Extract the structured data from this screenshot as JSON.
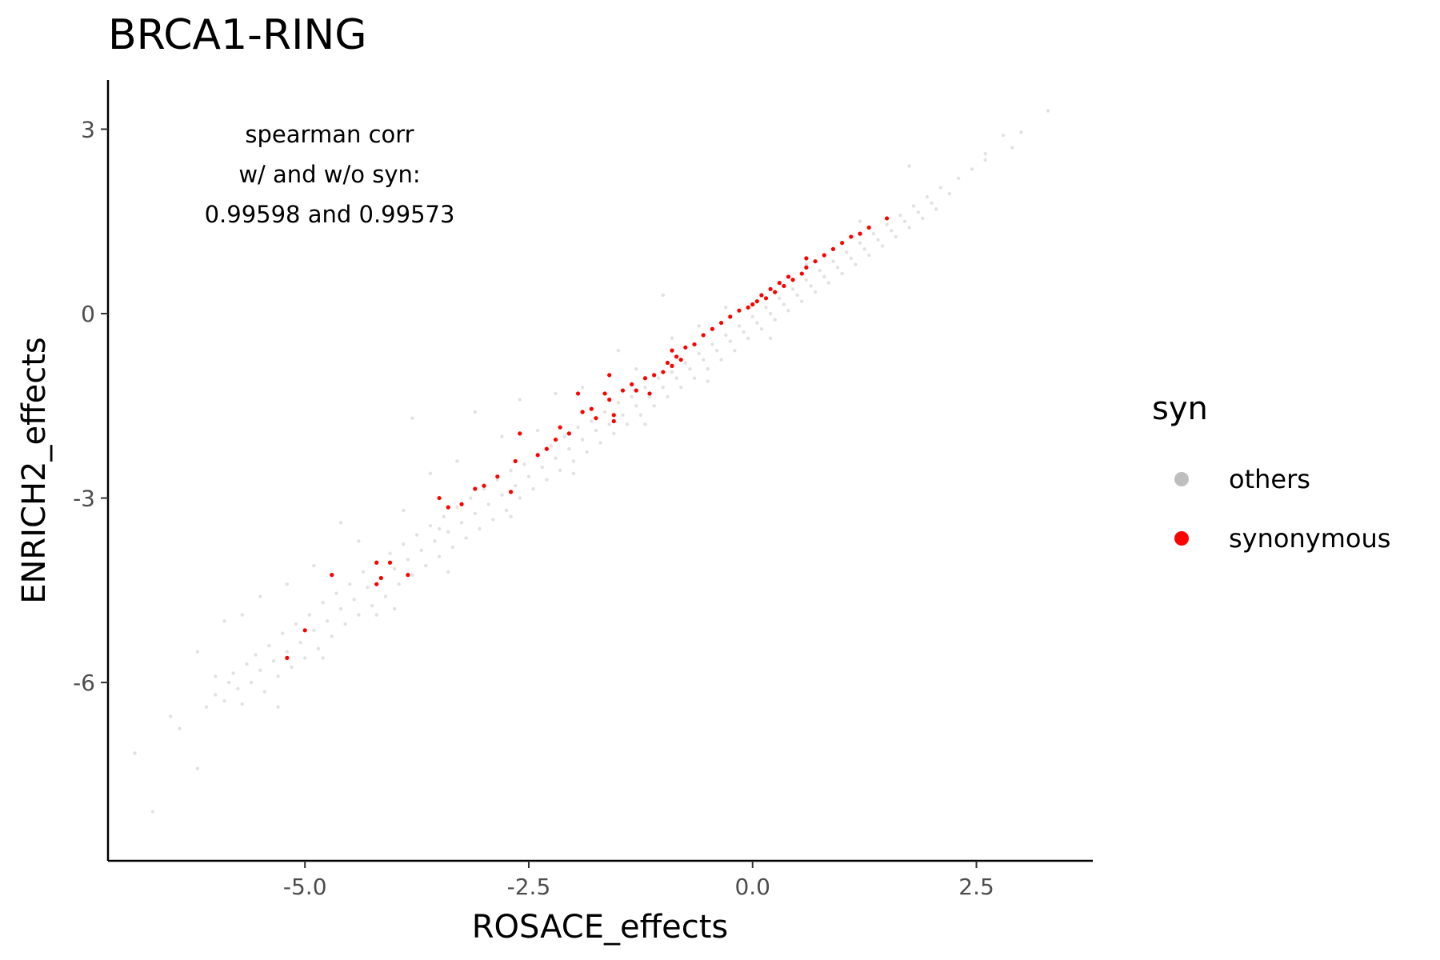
{
  "chart_data": {
    "type": "scatter",
    "title": "BRCA1-RING",
    "xlabel": "ROSACE_effects",
    "ylabel": "ENRICH2_effects",
    "xlim": [
      -7.2,
      3.8
    ],
    "ylim": [
      -8.9,
      3.8
    ],
    "x_ticks": [
      -5.0,
      -2.5,
      0.0,
      2.5
    ],
    "x_tick_labels": [
      "-5.0",
      "-2.5",
      "0.0",
      "2.5"
    ],
    "y_ticks": [
      3,
      0,
      -3,
      -6
    ],
    "y_tick_labels": [
      "3",
      "0",
      "-3",
      "-6"
    ],
    "grid": false,
    "legend": {
      "title": "syn",
      "position": "right"
    },
    "annotation": [
      "spearman corr",
      "w/ and w/o syn:",
      "0.99598 and 0.99573"
    ],
    "series": [
      {
        "name": "others",
        "color": "#bebebe",
        "points": [
          [
            -6.9,
            -7.15
          ],
          [
            -6.7,
            -8.1
          ],
          [
            -6.5,
            -6.55
          ],
          [
            -6.4,
            -6.75
          ],
          [
            -6.2,
            -7.4
          ],
          [
            -6.1,
            -6.4
          ],
          [
            -6.0,
            -5.9
          ],
          [
            -6.0,
            -6.2
          ],
          [
            -5.9,
            -6.3
          ],
          [
            -5.85,
            -6.0
          ],
          [
            -5.8,
            -5.85
          ],
          [
            -5.75,
            -6.1
          ],
          [
            -5.7,
            -6.35
          ],
          [
            -5.65,
            -5.7
          ],
          [
            -5.6,
            -6.0
          ],
          [
            -5.55,
            -5.55
          ],
          [
            -5.5,
            -5.8
          ],
          [
            -5.45,
            -6.15
          ],
          [
            -5.4,
            -5.4
          ],
          [
            -5.35,
            -5.65
          ],
          [
            -5.3,
            -5.9
          ],
          [
            -5.25,
            -5.2
          ],
          [
            -5.2,
            -5.5
          ],
          [
            -5.15,
            -5.75
          ],
          [
            -5.1,
            -5.05
          ],
          [
            -5.05,
            -5.35
          ],
          [
            -5.0,
            -5.6
          ],
          [
            -4.95,
            -4.9
          ],
          [
            -4.9,
            -5.15
          ],
          [
            -4.85,
            -5.45
          ],
          [
            -4.8,
            -4.7
          ],
          [
            -4.75,
            -5.0
          ],
          [
            -4.7,
            -5.25
          ],
          [
            -4.65,
            -4.55
          ],
          [
            -4.6,
            -4.8
          ],
          [
            -4.55,
            -5.05
          ],
          [
            -4.5,
            -4.4
          ],
          [
            -4.45,
            -4.65
          ],
          [
            -4.4,
            -4.9
          ],
          [
            -4.35,
            -4.2
          ],
          [
            -4.3,
            -4.45
          ],
          [
            -4.25,
            -4.75
          ],
          [
            -4.2,
            -4.05
          ],
          [
            -4.15,
            -4.3
          ],
          [
            -4.1,
            -4.6
          ],
          [
            -4.05,
            -3.9
          ],
          [
            -4.0,
            -4.15
          ],
          [
            -3.95,
            -4.4
          ],
          [
            -3.9,
            -3.75
          ],
          [
            -3.85,
            -4.0
          ],
          [
            -3.8,
            -4.25
          ],
          [
            -3.75,
            -3.6
          ],
          [
            -3.7,
            -3.85
          ],
          [
            -3.65,
            -4.1
          ],
          [
            -3.6,
            -3.45
          ],
          [
            -3.55,
            -3.7
          ],
          [
            -3.5,
            -3.95
          ],
          [
            -3.45,
            -3.3
          ],
          [
            -3.4,
            -3.55
          ],
          [
            -3.35,
            -3.8
          ],
          [
            -3.3,
            -3.15
          ],
          [
            -3.25,
            -3.4
          ],
          [
            -3.2,
            -3.65
          ],
          [
            -3.15,
            -3.0
          ],
          [
            -3.1,
            -3.25
          ],
          [
            -3.05,
            -3.5
          ],
          [
            -3.0,
            -2.85
          ],
          [
            -2.95,
            -3.1
          ],
          [
            -2.9,
            -3.35
          ],
          [
            -2.85,
            -2.7
          ],
          [
            -2.8,
            -2.95
          ],
          [
            -2.75,
            -3.2
          ],
          [
            -2.7,
            -2.55
          ],
          [
            -2.65,
            -2.8
          ],
          [
            -2.6,
            -3.0
          ],
          [
            -2.55,
            -2.45
          ],
          [
            -2.5,
            -2.65
          ],
          [
            -2.45,
            -2.85
          ],
          [
            -2.4,
            -2.3
          ],
          [
            -2.35,
            -2.5
          ],
          [
            -2.3,
            -2.7
          ],
          [
            -2.25,
            -2.15
          ],
          [
            -2.2,
            -2.35
          ],
          [
            -2.15,
            -2.55
          ],
          [
            -2.1,
            -2.0
          ],
          [
            -2.05,
            -2.2
          ],
          [
            -2.0,
            -2.4
          ],
          [
            -1.95,
            -1.85
          ],
          [
            -1.9,
            -2.05
          ],
          [
            -1.85,
            -2.25
          ],
          [
            -1.8,
            -1.75
          ],
          [
            -1.75,
            -1.9
          ],
          [
            -1.7,
            -2.1
          ],
          [
            -1.65,
            -1.6
          ],
          [
            -1.6,
            -1.8
          ],
          [
            -1.55,
            -1.95
          ],
          [
            -1.5,
            -1.45
          ],
          [
            -1.45,
            -1.65
          ],
          [
            -1.4,
            -1.8
          ],
          [
            -1.35,
            -1.35
          ],
          [
            -1.3,
            -1.5
          ],
          [
            -1.25,
            -1.65
          ],
          [
            -1.2,
            -1.2
          ],
          [
            -1.15,
            -1.35
          ],
          [
            -1.1,
            -1.5
          ],
          [
            -1.05,
            -1.05
          ],
          [
            -1.0,
            -1.2
          ],
          [
            -0.95,
            -1.35
          ],
          [
            -0.9,
            -0.95
          ],
          [
            -0.85,
            -1.05
          ],
          [
            -0.8,
            -1.2
          ],
          [
            -0.75,
            -0.8
          ],
          [
            -0.7,
            -0.9
          ],
          [
            -0.65,
            -1.05
          ],
          [
            -0.6,
            -0.65
          ],
          [
            -0.55,
            -0.75
          ],
          [
            -0.5,
            -0.9
          ],
          [
            -0.45,
            -0.5
          ],
          [
            -0.4,
            -0.6
          ],
          [
            -0.35,
            -0.75
          ],
          [
            -0.3,
            -0.35
          ],
          [
            -0.25,
            -0.45
          ],
          [
            -0.2,
            -0.6
          ],
          [
            -0.15,
            -0.2
          ],
          [
            -0.1,
            -0.3
          ],
          [
            -0.05,
            -0.4
          ],
          [
            0.0,
            -0.05
          ],
          [
            0.05,
            -0.15
          ],
          [
            0.1,
            -0.25
          ],
          [
            0.15,
            0.1
          ],
          [
            0.2,
            0.0
          ],
          [
            0.25,
            -0.1
          ],
          [
            0.3,
            0.25
          ],
          [
            0.35,
            0.15
          ],
          [
            0.4,
            0.05
          ],
          [
            0.45,
            0.4
          ],
          [
            0.5,
            0.3
          ],
          [
            0.55,
            0.2
          ],
          [
            0.6,
            0.55
          ],
          [
            0.65,
            0.45
          ],
          [
            0.7,
            0.35
          ],
          [
            0.75,
            0.7
          ],
          [
            0.8,
            0.6
          ],
          [
            0.85,
            0.5
          ],
          [
            0.9,
            0.85
          ],
          [
            0.95,
            0.75
          ],
          [
            1.0,
            0.65
          ],
          [
            1.05,
            1.0
          ],
          [
            1.1,
            0.9
          ],
          [
            1.15,
            0.8
          ],
          [
            1.2,
            1.15
          ],
          [
            1.25,
            1.05
          ],
          [
            1.3,
            0.95
          ],
          [
            1.35,
            1.3
          ],
          [
            1.4,
            1.2
          ],
          [
            1.45,
            1.1
          ],
          [
            1.5,
            1.45
          ],
          [
            1.55,
            1.35
          ],
          [
            1.6,
            1.25
          ],
          [
            1.65,
            1.6
          ],
          [
            1.7,
            1.5
          ],
          [
            1.75,
            1.4
          ],
          [
            1.8,
            1.75
          ],
          [
            1.85,
            1.65
          ],
          [
            1.9,
            1.55
          ],
          [
            1.95,
            1.9
          ],
          [
            2.0,
            1.8
          ],
          [
            2.05,
            1.7
          ],
          [
            2.1,
            2.05
          ],
          [
            2.2,
            1.95
          ],
          [
            2.3,
            2.2
          ],
          [
            2.45,
            2.35
          ],
          [
            2.6,
            2.5
          ],
          [
            2.8,
            2.9
          ],
          [
            3.0,
            2.95
          ],
          [
            3.3,
            3.3
          ],
          [
            1.75,
            2.4
          ],
          [
            2.6,
            2.6
          ],
          [
            2.9,
            2.7
          ],
          [
            -1.0,
            0.3
          ],
          [
            -1.5,
            -0.6
          ],
          [
            -2.6,
            -1.4
          ],
          [
            -3.1,
            -1.6
          ],
          [
            -5.9,
            -5.0
          ],
          [
            -3.8,
            -1.7
          ],
          [
            -0.3,
            0.1
          ],
          [
            -0.6,
            -0.2
          ],
          [
            -2.2,
            -1.3
          ],
          [
            -3.6,
            -2.6
          ],
          [
            -4.6,
            -3.4
          ],
          [
            -5.2,
            -4.4
          ],
          [
            -4.0,
            -4.8
          ],
          [
            -3.3,
            -2.4
          ],
          [
            -2.8,
            -2.0
          ],
          [
            -4.4,
            -3.7
          ],
          [
            -5.5,
            -4.6
          ],
          [
            -1.9,
            -1.2
          ],
          [
            -2.4,
            -1.9
          ],
          [
            -0.9,
            -0.4
          ],
          [
            0.6,
            0.8
          ],
          [
            1.2,
            1.5
          ],
          [
            -1.3,
            -0.9
          ],
          [
            -3.9,
            -3.2
          ],
          [
            -4.9,
            -4.1
          ],
          [
            -5.7,
            -4.9
          ],
          [
            -6.2,
            -5.5
          ],
          [
            -3.5,
            -3.5
          ],
          [
            -4.2,
            -4.9
          ],
          [
            -2.0,
            -2.6
          ],
          [
            -1.2,
            -1.8
          ],
          [
            -0.5,
            -1.1
          ],
          [
            0.2,
            -0.4
          ],
          [
            -2.7,
            -3.3
          ],
          [
            -3.4,
            -4.2
          ],
          [
            -4.8,
            -5.6
          ],
          [
            -5.3,
            -6.4
          ]
        ]
      },
      {
        "name": "synonymous",
        "color": "#ff0000",
        "points": [
          [
            -5.2,
            -5.6
          ],
          [
            -5.0,
            -5.15
          ],
          [
            -4.7,
            -4.25
          ],
          [
            -4.2,
            -4.05
          ],
          [
            -4.2,
            -4.4
          ],
          [
            -4.15,
            -4.3
          ],
          [
            -4.05,
            -4.05
          ],
          [
            -3.85,
            -4.25
          ],
          [
            -3.5,
            -3.0
          ],
          [
            -3.4,
            -3.15
          ],
          [
            -3.25,
            -3.1
          ],
          [
            -3.1,
            -2.85
          ],
          [
            -3.0,
            -2.8
          ],
          [
            -2.85,
            -2.65
          ],
          [
            -2.7,
            -2.9
          ],
          [
            -2.65,
            -2.4
          ],
          [
            -2.6,
            -1.95
          ],
          [
            -2.4,
            -2.3
          ],
          [
            -2.3,
            -2.2
          ],
          [
            -2.2,
            -2.05
          ],
          [
            -2.15,
            -1.85
          ],
          [
            -2.05,
            -1.95
          ],
          [
            -1.95,
            -1.3
          ],
          [
            -1.9,
            -1.6
          ],
          [
            -1.8,
            -1.55
          ],
          [
            -1.75,
            -1.7
          ],
          [
            -1.65,
            -1.3
          ],
          [
            -1.6,
            -1.4
          ],
          [
            -1.55,
            -1.75
          ],
          [
            -1.55,
            -1.65
          ],
          [
            -1.45,
            -1.25
          ],
          [
            -1.35,
            -1.15
          ],
          [
            -1.3,
            -1.25
          ],
          [
            -1.2,
            -1.05
          ],
          [
            -1.15,
            -1.3
          ],
          [
            -1.1,
            -1.0
          ],
          [
            -1.0,
            -0.95
          ],
          [
            -0.95,
            -0.8
          ],
          [
            -0.9,
            -0.85
          ],
          [
            -0.85,
            -0.7
          ],
          [
            -0.8,
            -0.75
          ],
          [
            -0.75,
            -0.55
          ],
          [
            -0.65,
            -0.5
          ],
          [
            -0.55,
            -0.35
          ],
          [
            -0.45,
            -0.25
          ],
          [
            -0.35,
            -0.15
          ],
          [
            -0.25,
            -0.05
          ],
          [
            -0.15,
            0.05
          ],
          [
            -0.05,
            0.1
          ],
          [
            0.0,
            0.15
          ],
          [
            0.05,
            0.2
          ],
          [
            0.1,
            0.3
          ],
          [
            0.15,
            0.25
          ],
          [
            0.2,
            0.4
          ],
          [
            0.25,
            0.35
          ],
          [
            0.3,
            0.5
          ],
          [
            0.35,
            0.45
          ],
          [
            0.4,
            0.6
          ],
          [
            0.45,
            0.55
          ],
          [
            0.55,
            0.65
          ],
          [
            0.6,
            0.75
          ],
          [
            0.7,
            0.85
          ],
          [
            0.8,
            0.95
          ],
          [
            0.9,
            1.05
          ],
          [
            1.0,
            1.15
          ],
          [
            1.1,
            1.25
          ],
          [
            1.2,
            1.3
          ],
          [
            1.3,
            1.4
          ],
          [
            1.5,
            1.55
          ],
          [
            0.6,
            0.9
          ],
          [
            -0.9,
            -0.6
          ],
          [
            -1.6,
            -1.0
          ]
        ]
      }
    ]
  }
}
